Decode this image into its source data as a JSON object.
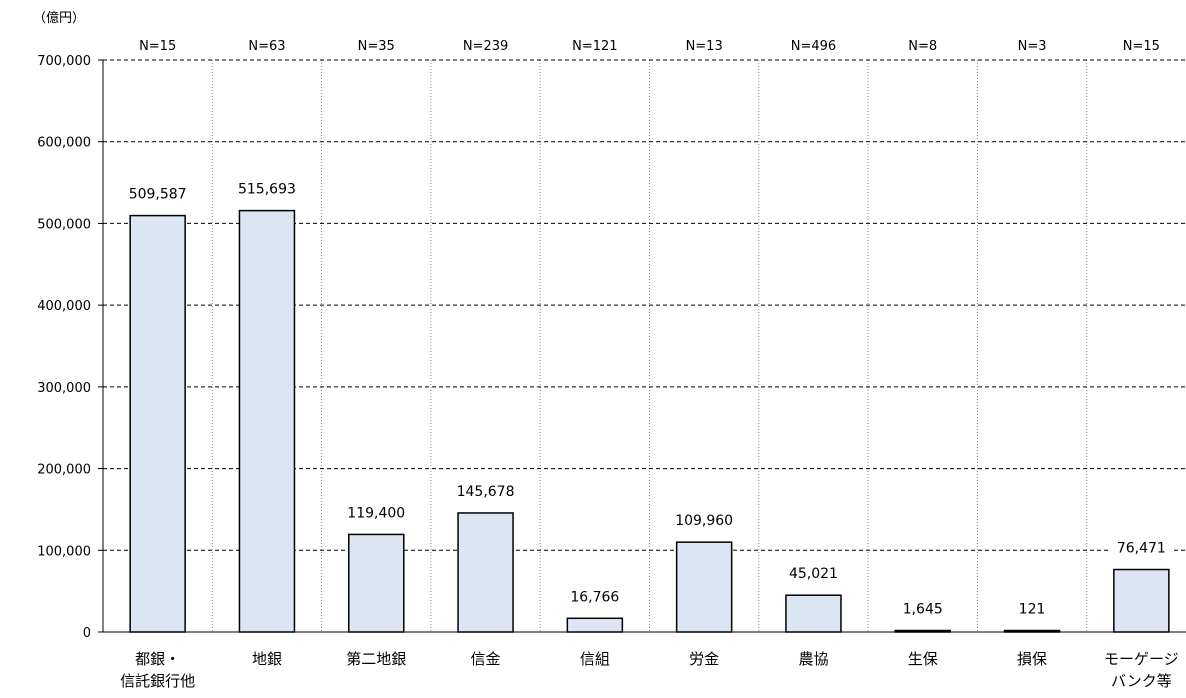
{
  "chart_data": {
    "type": "bar",
    "unit_label": "（億円）",
    "categories": [
      [
        "都銀・",
        "信託銀行他"
      ],
      [
        "地銀"
      ],
      [
        "第二地銀"
      ],
      [
        "信金"
      ],
      [
        "信組"
      ],
      [
        "労金"
      ],
      [
        "農協"
      ],
      [
        "生保"
      ],
      [
        "損保"
      ],
      [
        "モーゲージ",
        "バンク等"
      ]
    ],
    "n_labels": [
      "N=15",
      "N=63",
      "N=35",
      "N=239",
      "N=121",
      "N=13",
      "N=496",
      "N=8",
      "N=3",
      "N=15"
    ],
    "values": [
      509587,
      515693,
      119400,
      145678,
      16766,
      109960,
      45021,
      1645,
      121,
      76471
    ],
    "value_labels": [
      "509,587",
      "515,693",
      "119,400",
      "145,678",
      "16,766",
      "109,960",
      "45,021",
      "1,645",
      "121",
      "76,471"
    ],
    "y_ticks": [
      0,
      100000,
      200000,
      300000,
      400000,
      500000,
      600000,
      700000
    ],
    "y_tick_labels": [
      "0",
      "100,000",
      "200,000",
      "300,000",
      "400,000",
      "500,000",
      "600,000",
      "700,000"
    ],
    "ylim": [
      0,
      700000
    ],
    "grid": true,
    "colors": {
      "bar_fill": "#dce6f2",
      "bar_stroke": "#000000"
    }
  }
}
